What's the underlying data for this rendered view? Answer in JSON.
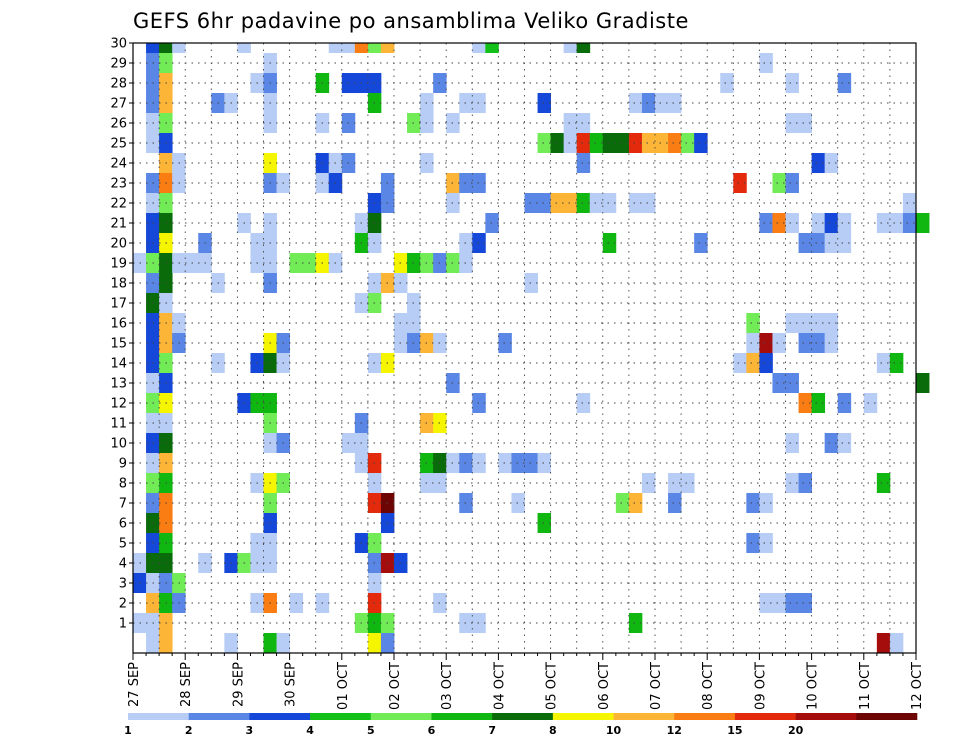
{
  "chart_data": {
    "type": "heatmap",
    "title": "GEFS 6hr padavine po ansamblima Veliko Gradiste",
    "xlabel": "",
    "ylabel": "",
    "x_tick_labels": [
      "27 SEP",
      "28 SEP",
      "29 SEP",
      "30 SEP",
      "01 OCT",
      "02 OCT",
      "03 OCT",
      "04 OCT",
      "05 OCT",
      "06 OCT",
      "07 OCT",
      "08 OCT",
      "09 OCT",
      "10 OCT",
      "11 OCT",
      "12 OCT"
    ],
    "y_tick_labels": [
      "1",
      "2",
      "3",
      "4",
      "5",
      "6",
      "7",
      "8",
      "9",
      "10",
      "11",
      "12",
      "13",
      "14",
      "15",
      "16",
      "17",
      "18",
      "19",
      "20",
      "21",
      "22",
      "23",
      "24",
      "25",
      "26",
      "27",
      "28",
      "29",
      "30"
    ],
    "x_unit": "6-hour step",
    "x_range": [
      0,
      60
    ],
    "y_range": [
      1,
      30
    ],
    "grid": true,
    "colorbar": {
      "levels": [
        "1",
        "2",
        "3",
        "4",
        "5",
        "6",
        "7",
        "8",
        "10",
        "12",
        "15",
        "20"
      ],
      "colors": [
        "#b7cdf5",
        "#5a86e6",
        "#1547d8",
        "#12c018",
        "#72ec56",
        "#11b711",
        "#096b09",
        "#f5f500",
        "#fcb537",
        "#fa7d14",
        "#e32a0c",
        "#a50d0d",
        "#6e0505"
      ]
    },
    "cell_note": "cells: [member (1-30), step index (0-59), color class 1..13]",
    "cells": [
      [
        30,
        1,
        3
      ],
      [
        30,
        2,
        7
      ],
      [
        30,
        3,
        1
      ],
      [
        30,
        8,
        1
      ],
      [
        30,
        15,
        1
      ],
      [
        30,
        16,
        1
      ],
      [
        30,
        17,
        10
      ],
      [
        30,
        18,
        5
      ],
      [
        30,
        19,
        9
      ],
      [
        30,
        26,
        1
      ],
      [
        30,
        27,
        4
      ],
      [
        30,
        33,
        1
      ],
      [
        30,
        34,
        7
      ],
      [
        29,
        1,
        2
      ],
      [
        29,
        2,
        5
      ],
      [
        29,
        10,
        1
      ],
      [
        29,
        48,
        1
      ],
      [
        28,
        1,
        2
      ],
      [
        28,
        2,
        9
      ],
      [
        28,
        9,
        1
      ],
      [
        28,
        10,
        2
      ],
      [
        28,
        14,
        6
      ],
      [
        28,
        16,
        3
      ],
      [
        28,
        17,
        3
      ],
      [
        28,
        18,
        3
      ],
      [
        28,
        23,
        2
      ],
      [
        28,
        45,
        1
      ],
      [
        28,
        50,
        1
      ],
      [
        28,
        54,
        2
      ],
      [
        27,
        1,
        2
      ],
      [
        27,
        2,
        9
      ],
      [
        27,
        6,
        2
      ],
      [
        27,
        7,
        1
      ],
      [
        27,
        10,
        1
      ],
      [
        27,
        18,
        6
      ],
      [
        27,
        22,
        1
      ],
      [
        27,
        25,
        1
      ],
      [
        27,
        26,
        1
      ],
      [
        27,
        31,
        3
      ],
      [
        27,
        38,
        1
      ],
      [
        27,
        39,
        2
      ],
      [
        27,
        40,
        1
      ],
      [
        27,
        41,
        1
      ],
      [
        26,
        1,
        1
      ],
      [
        26,
        2,
        5
      ],
      [
        26,
        10,
        1
      ],
      [
        26,
        14,
        1
      ],
      [
        26,
        16,
        2
      ],
      [
        26,
        21,
        5
      ],
      [
        26,
        22,
        1
      ],
      [
        26,
        24,
        1
      ],
      [
        26,
        33,
        1
      ],
      [
        26,
        34,
        1
      ],
      [
        26,
        50,
        1
      ],
      [
        26,
        51,
        1
      ],
      [
        25,
        1,
        1
      ],
      [
        25,
        2,
        3
      ],
      [
        25,
        31,
        5
      ],
      [
        25,
        32,
        7
      ],
      [
        25,
        33,
        1
      ],
      [
        25,
        34,
        11
      ],
      [
        25,
        35,
        6
      ],
      [
        25,
        36,
        7
      ],
      [
        25,
        37,
        7
      ],
      [
        25,
        38,
        11
      ],
      [
        25,
        39,
        9
      ],
      [
        25,
        40,
        9
      ],
      [
        25,
        41,
        10
      ],
      [
        25,
        42,
        5
      ],
      [
        25,
        43,
        3
      ],
      [
        24,
        2,
        9
      ],
      [
        24,
        3,
        1
      ],
      [
        24,
        10,
        8
      ],
      [
        24,
        14,
        3
      ],
      [
        24,
        15,
        1
      ],
      [
        24,
        16,
        2
      ],
      [
        24,
        22,
        1
      ],
      [
        24,
        34,
        2
      ],
      [
        24,
        52,
        3
      ],
      [
        24,
        53,
        1
      ],
      [
        23,
        1,
        2
      ],
      [
        23,
        2,
        10
      ],
      [
        23,
        3,
        1
      ],
      [
        23,
        10,
        2
      ],
      [
        23,
        11,
        1
      ],
      [
        23,
        14,
        1
      ],
      [
        23,
        15,
        3
      ],
      [
        23,
        19,
        2
      ],
      [
        23,
        24,
        9
      ],
      [
        23,
        25,
        2
      ],
      [
        23,
        26,
        2
      ],
      [
        23,
        46,
        11
      ],
      [
        23,
        49,
        5
      ],
      [
        23,
        50,
        2
      ],
      [
        22,
        1,
        1
      ],
      [
        22,
        2,
        5
      ],
      [
        22,
        18,
        3
      ],
      [
        22,
        19,
        2
      ],
      [
        22,
        24,
        1
      ],
      [
        22,
        30,
        2
      ],
      [
        22,
        31,
        2
      ],
      [
        22,
        32,
        9
      ],
      [
        22,
        33,
        9
      ],
      [
        22,
        34,
        6
      ],
      [
        22,
        35,
        1
      ],
      [
        22,
        36,
        1
      ],
      [
        22,
        38,
        1
      ],
      [
        22,
        39,
        1
      ],
      [
        22,
        59,
        1
      ],
      [
        21,
        1,
        3
      ],
      [
        21,
        2,
        7
      ],
      [
        21,
        8,
        1
      ],
      [
        21,
        10,
        1
      ],
      [
        21,
        17,
        1
      ],
      [
        21,
        18,
        7
      ],
      [
        21,
        27,
        2
      ],
      [
        21,
        48,
        2
      ],
      [
        21,
        49,
        10
      ],
      [
        21,
        50,
        1
      ],
      [
        21,
        52,
        1
      ],
      [
        21,
        53,
        3
      ],
      [
        21,
        54,
        1
      ],
      [
        21,
        57,
        1
      ],
      [
        21,
        58,
        1
      ],
      [
        21,
        59,
        2
      ],
      [
        21,
        60,
        6
      ],
      [
        20,
        1,
        3
      ],
      [
        20,
        2,
        8
      ],
      [
        20,
        5,
        2
      ],
      [
        20,
        9,
        1
      ],
      [
        20,
        10,
        1
      ],
      [
        20,
        17,
        6
      ],
      [
        20,
        18,
        1
      ],
      [
        20,
        25,
        1
      ],
      [
        20,
        26,
        3
      ],
      [
        20,
        36,
        6
      ],
      [
        20,
        43,
        2
      ],
      [
        20,
        51,
        2
      ],
      [
        20,
        52,
        2
      ],
      [
        20,
        53,
        1
      ],
      [
        20,
        54,
        1
      ],
      [
        19,
        0,
        1
      ],
      [
        19,
        1,
        5
      ],
      [
        19,
        2,
        7
      ],
      [
        19,
        3,
        1
      ],
      [
        19,
        4,
        1
      ],
      [
        19,
        5,
        1
      ],
      [
        19,
        9,
        1
      ],
      [
        19,
        10,
        1
      ],
      [
        19,
        12,
        5
      ],
      [
        19,
        13,
        5
      ],
      [
        19,
        14,
        8
      ],
      [
        19,
        15,
        1
      ],
      [
        19,
        20,
        8
      ],
      [
        19,
        21,
        6
      ],
      [
        19,
        22,
        5
      ],
      [
        19,
        23,
        2
      ],
      [
        19,
        24,
        5
      ],
      [
        19,
        25,
        1
      ],
      [
        18,
        1,
        2
      ],
      [
        18,
        2,
        7
      ],
      [
        18,
        6,
        1
      ],
      [
        18,
        10,
        2
      ],
      [
        18,
        18,
        1
      ],
      [
        18,
        19,
        9
      ],
      [
        18,
        20,
        1
      ],
      [
        18,
        30,
        1
      ],
      [
        17,
        1,
        7
      ],
      [
        17,
        2,
        1
      ],
      [
        17,
        17,
        1
      ],
      [
        17,
        18,
        5
      ],
      [
        17,
        21,
        1
      ],
      [
        16,
        1,
        3
      ],
      [
        16,
        2,
        9
      ],
      [
        16,
        3,
        1
      ],
      [
        16,
        20,
        1
      ],
      [
        16,
        21,
        1
      ],
      [
        16,
        47,
        5
      ],
      [
        16,
        50,
        1
      ],
      [
        16,
        51,
        1
      ],
      [
        16,
        52,
        1
      ],
      [
        16,
        53,
        1
      ],
      [
        15,
        1,
        3
      ],
      [
        15,
        2,
        9
      ],
      [
        15,
        3,
        2
      ],
      [
        15,
        10,
        8
      ],
      [
        15,
        11,
        2
      ],
      [
        15,
        20,
        1
      ],
      [
        15,
        21,
        2
      ],
      [
        15,
        22,
        9
      ],
      [
        15,
        23,
        1
      ],
      [
        15,
        28,
        2
      ],
      [
        15,
        47,
        1
      ],
      [
        15,
        48,
        12
      ],
      [
        15,
        49,
        1
      ],
      [
        15,
        51,
        2
      ],
      [
        15,
        52,
        2
      ],
      [
        15,
        53,
        1
      ],
      [
        14,
        1,
        3
      ],
      [
        14,
        2,
        5
      ],
      [
        14,
        6,
        1
      ],
      [
        14,
        9,
        3
      ],
      [
        14,
        10,
        7
      ],
      [
        14,
        11,
        1
      ],
      [
        14,
        18,
        1
      ],
      [
        14,
        19,
        8
      ],
      [
        14,
        46,
        1
      ],
      [
        14,
        47,
        9
      ],
      [
        14,
        48,
        3
      ],
      [
        14,
        57,
        1
      ],
      [
        14,
        58,
        6
      ],
      [
        13,
        1,
        1
      ],
      [
        13,
        2,
        3
      ],
      [
        13,
        24,
        2
      ],
      [
        13,
        49,
        2
      ],
      [
        13,
        50,
        2
      ],
      [
        13,
        60,
        7
      ],
      [
        12,
        1,
        5
      ],
      [
        12,
        2,
        8
      ],
      [
        12,
        8,
        3
      ],
      [
        12,
        9,
        6
      ],
      [
        12,
        10,
        6
      ],
      [
        12,
        26,
        2
      ],
      [
        12,
        34,
        1
      ],
      [
        12,
        51,
        10
      ],
      [
        12,
        52,
        6
      ],
      [
        12,
        54,
        2
      ],
      [
        12,
        56,
        1
      ],
      [
        11,
        1,
        1
      ],
      [
        11,
        2,
        1
      ],
      [
        11,
        10,
        5
      ],
      [
        11,
        17,
        2
      ],
      [
        11,
        22,
        9
      ],
      [
        11,
        23,
        8
      ],
      [
        10,
        1,
        3
      ],
      [
        10,
        2,
        7
      ],
      [
        10,
        10,
        1
      ],
      [
        10,
        11,
        2
      ],
      [
        10,
        16,
        1
      ],
      [
        10,
        17,
        1
      ],
      [
        10,
        50,
        1
      ],
      [
        10,
        53,
        2
      ],
      [
        10,
        54,
        1
      ],
      [
        9,
        1,
        1
      ],
      [
        9,
        2,
        9
      ],
      [
        9,
        17,
        1
      ],
      [
        9,
        18,
        11
      ],
      [
        9,
        22,
        6
      ],
      [
        9,
        23,
        7
      ],
      [
        9,
        24,
        1
      ],
      [
        9,
        25,
        2
      ],
      [
        9,
        26,
        1
      ],
      [
        9,
        28,
        1
      ],
      [
        9,
        29,
        2
      ],
      [
        9,
        30,
        2
      ],
      [
        9,
        31,
        1
      ],
      [
        8,
        1,
        5
      ],
      [
        8,
        2,
        6
      ],
      [
        8,
        9,
        1
      ],
      [
        8,
        10,
        8
      ],
      [
        8,
        11,
        5
      ],
      [
        8,
        18,
        1
      ],
      [
        8,
        22,
        1
      ],
      [
        8,
        23,
        1
      ],
      [
        8,
        39,
        1
      ],
      [
        8,
        41,
        1
      ],
      [
        8,
        42,
        1
      ],
      [
        8,
        50,
        1
      ],
      [
        8,
        51,
        2
      ],
      [
        8,
        57,
        6
      ],
      [
        7,
        1,
        2
      ],
      [
        7,
        2,
        10
      ],
      [
        7,
        10,
        5
      ],
      [
        7,
        18,
        11
      ],
      [
        7,
        19,
        13
      ],
      [
        7,
        25,
        2
      ],
      [
        7,
        29,
        1
      ],
      [
        7,
        37,
        5
      ],
      [
        7,
        38,
        9
      ],
      [
        7,
        41,
        2
      ],
      [
        7,
        47,
        2
      ],
      [
        7,
        48,
        1
      ],
      [
        6,
        1,
        7
      ],
      [
        6,
        2,
        10
      ],
      [
        6,
        10,
        3
      ],
      [
        6,
        19,
        3
      ],
      [
        6,
        31,
        6
      ],
      [
        5,
        1,
        3
      ],
      [
        5,
        2,
        6
      ],
      [
        5,
        9,
        1
      ],
      [
        5,
        10,
        1
      ],
      [
        5,
        17,
        3
      ],
      [
        5,
        18,
        5
      ],
      [
        5,
        47,
        2
      ],
      [
        5,
        48,
        1
      ],
      [
        4,
        0,
        1
      ],
      [
        4,
        1,
        7
      ],
      [
        4,
        2,
        7
      ],
      [
        4,
        5,
        1
      ],
      [
        4,
        7,
        3
      ],
      [
        4,
        8,
        5
      ],
      [
        4,
        9,
        1
      ],
      [
        4,
        10,
        1
      ],
      [
        4,
        18,
        2
      ],
      [
        4,
        19,
        12
      ],
      [
        4,
        20,
        3
      ],
      [
        3,
        0,
        3
      ],
      [
        3,
        1,
        1
      ],
      [
        3,
        2,
        2
      ],
      [
        3,
        3,
        5
      ],
      [
        3,
        18,
        1
      ],
      [
        2,
        1,
        9
      ],
      [
        2,
        2,
        6
      ],
      [
        2,
        3,
        2
      ],
      [
        2,
        9,
        1
      ],
      [
        2,
        10,
        10
      ],
      [
        2,
        12,
        1
      ],
      [
        2,
        14,
        1
      ],
      [
        2,
        18,
        11
      ],
      [
        2,
        23,
        1
      ],
      [
        2,
        48,
        1
      ],
      [
        2,
        49,
        1
      ],
      [
        2,
        50,
        2
      ],
      [
        2,
        51,
        2
      ],
      [
        1,
        0,
        1
      ],
      [
        1,
        1,
        1
      ],
      [
        1,
        2,
        9
      ],
      [
        1,
        17,
        5
      ],
      [
        1,
        18,
        6
      ],
      [
        1,
        19,
        5
      ],
      [
        1,
        25,
        1
      ],
      [
        1,
        26,
        1
      ],
      [
        1,
        38,
        6
      ],
      [
        0,
        1,
        1
      ],
      [
        0,
        2,
        9
      ],
      [
        0,
        7,
        1
      ],
      [
        0,
        10,
        6
      ],
      [
        0,
        11,
        1
      ],
      [
        0,
        18,
        8
      ],
      [
        0,
        19,
        2
      ],
      [
        0,
        57,
        12
      ],
      [
        0,
        58,
        1
      ]
    ]
  }
}
